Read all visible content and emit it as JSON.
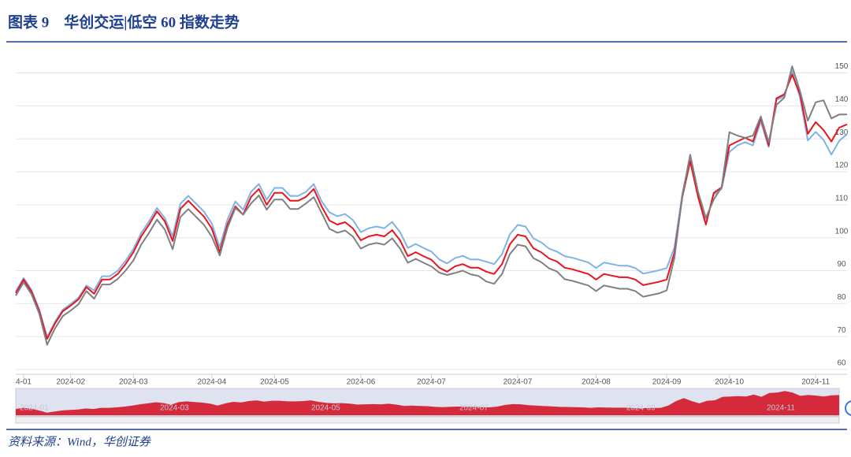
{
  "chart_data": {
    "type": "line",
    "title": "图表 9　华创交运|低空 60 指数走势",
    "source": "资料来源：Wind，华创证券",
    "categories": [
      null,
      "4-01",
      null,
      null,
      null,
      null,
      null,
      "2024-02",
      null,
      null,
      null,
      null,
      null,
      null,
      null,
      "2024-03",
      null,
      null,
      null,
      null,
      null,
      null,
      null,
      null,
      null,
      "2024-04",
      null,
      null,
      null,
      null,
      null,
      null,
      null,
      "2024-05",
      null,
      null,
      null,
      null,
      null,
      null,
      null,
      null,
      null,
      null,
      "2024-06",
      null,
      null,
      null,
      null,
      null,
      null,
      null,
      null,
      "2024-07",
      null,
      null,
      null,
      null,
      null,
      null,
      null,
      null,
      null,
      null,
      "2024-07",
      null,
      null,
      null,
      null,
      null,
      null,
      null,
      null,
      null,
      "2024-08",
      null,
      null,
      null,
      null,
      null,
      null,
      null,
      null,
      "2024-09",
      null,
      null,
      null,
      null,
      null,
      null,
      null,
      "2024-10",
      null,
      null,
      null,
      null,
      null,
      null,
      null,
      null,
      null,
      null,
      "2024-11",
      null,
      null,
      null,
      null
    ],
    "series": [
      {
        "color": "#7fb3e8",
        "values": [
          83.7,
          87.8,
          84.2,
          78.2,
          69.8,
          74.5,
          78.2,
          79.9,
          81.8,
          85.5,
          84,
          88.3,
          88.3,
          90,
          93,
          96.6,
          101.4,
          105,
          109,
          106,
          100.5,
          110.3,
          112.7,
          110.3,
          107.9,
          104.3,
          97.1,
          105.5,
          111,
          108.5,
          113.9,
          116.3,
          111.5,
          115.1,
          115.1,
          112.7,
          112.7,
          113.9,
          116.3,
          111,
          107.7,
          106.5,
          107.2,
          105.3,
          101.7,
          102.9,
          103.4,
          102.9,
          104.8,
          101.7,
          96.9,
          98.1,
          96.9,
          95.8,
          93.4,
          92.2,
          93.8,
          94.5,
          93.4,
          93.4,
          92.7,
          92,
          95,
          101,
          103.9,
          103.4,
          99.8,
          98.6,
          96.7,
          95.8,
          94.4,
          93.9,
          93.2,
          92.5,
          90.8,
          92.5,
          92,
          91.5,
          91.5,
          90.8,
          89.1,
          89.6,
          90.1,
          90.8,
          97.1,
          113.4,
          124.2,
          112.9,
          104.5,
          113.1,
          114.8,
          126,
          128,
          129,
          128,
          135.3,
          127.5,
          141.8,
          143,
          150.5,
          142.5,
          129.5,
          132.1,
          129.7,
          125.2,
          129.4,
          131.4
        ]
      },
      {
        "color": "#e8141e",
        "values": [
          83.2,
          87.3,
          83.7,
          77.7,
          69.3,
          74,
          77.7,
          79.4,
          81.3,
          85,
          83,
          87.3,
          87.3,
          89,
          92,
          95.6,
          100.4,
          104,
          108,
          105,
          99,
          108.8,
          111.2,
          108.8,
          106.4,
          102.8,
          95.6,
          104,
          109.5,
          107,
          112.4,
          114.8,
          110,
          113.6,
          113.6,
          111.2,
          111.2,
          112.4,
          114.8,
          109.5,
          105.2,
          104,
          104.7,
          102.8,
          99.2,
          100.4,
          100.9,
          100.4,
          102.3,
          99.2,
          94.4,
          95.6,
          94.4,
          93.3,
          90.9,
          89.7,
          91.3,
          92,
          90.9,
          90.9,
          89.7,
          89,
          92,
          98,
          100.9,
          100.4,
          96.8,
          95.6,
          93.7,
          92.8,
          90.9,
          90.4,
          89.7,
          89,
          87.3,
          89,
          88.5,
          88,
          88,
          87.3,
          85.6,
          86.1,
          86.6,
          87.3,
          95.6,
          112.4,
          123.2,
          112.4,
          104,
          113.6,
          115.3,
          128,
          129.2,
          130.3,
          129.2,
          136.3,
          128,
          142.3,
          143.5,
          149.5,
          143.5,
          131.5,
          135.1,
          132.7,
          129.2,
          133.4,
          134.4
        ]
      },
      {
        "color": "#808080",
        "values": [
          82.4,
          86.5,
          82.9,
          76.9,
          67.5,
          72.5,
          76.2,
          77.9,
          79.8,
          83.8,
          81.5,
          85.8,
          85.8,
          87.5,
          90,
          93.1,
          97.9,
          101.5,
          105.5,
          102.5,
          96.5,
          106.3,
          108.7,
          106.3,
          103.9,
          100.3,
          94.6,
          103,
          109,
          107,
          110.4,
          112.8,
          108.5,
          111.6,
          111.6,
          108.7,
          108.7,
          110.4,
          112.3,
          107.5,
          102.7,
          101.5,
          102.2,
          100.3,
          96.7,
          97.9,
          98.4,
          97.9,
          99.8,
          96.7,
          92.4,
          93.6,
          92.4,
          91.3,
          89.4,
          88.7,
          89.3,
          90,
          88.9,
          88.4,
          86.7,
          86,
          89,
          95,
          97.9,
          97.4,
          93.8,
          92.6,
          90.7,
          89.8,
          87.4,
          86.9,
          86.2,
          85.5,
          83.8,
          85.5,
          85,
          84.5,
          84.5,
          83.8,
          82.1,
          82.6,
          83.1,
          84,
          94,
          112.9,
          125.2,
          113.9,
          106,
          111.6,
          115.3,
          132,
          131,
          130.3,
          131,
          136.8,
          129,
          140.3,
          142.5,
          152,
          144.5,
          135.5,
          141.1,
          141.7,
          136.2,
          137.4,
          137.4
        ]
      }
    ],
    "ylim": [
      60,
      153
    ],
    "yticks": [
      60,
      70,
      80,
      90,
      100,
      110,
      120,
      130,
      140,
      150
    ],
    "grid": true,
    "navigator_labels": [
      "2024-01",
      "2024-03",
      "2024-05",
      "2024-07",
      "2024-09",
      "2024-11"
    ],
    "navigator_color": "#d42a3c"
  }
}
